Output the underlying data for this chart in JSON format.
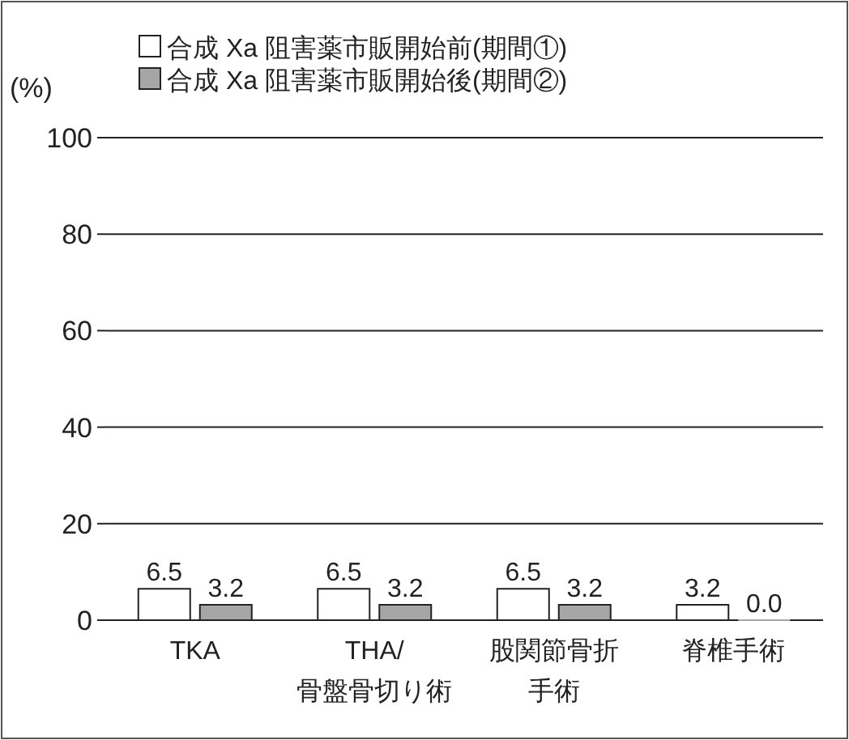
{
  "chart_data": {
    "type": "bar",
    "ylabel": "(%)",
    "categories": [
      "TKA",
      "THA/\n骨盤骨切り術",
      "股関節骨折手術",
      "脊椎手術"
    ],
    "series": [
      {
        "name": "合成 Xa 阻害薬市販開始前(期間①)",
        "color": "#ffffff",
        "values": [
          6.5,
          6.5,
          6.5,
          3.2
        ],
        "value_labels": [
          "6.5",
          "6.5",
          "6.5",
          "3.2"
        ]
      },
      {
        "name": "合成 Xa 阻害薬市販開始後(期間②)",
        "color": "#a6a6a6",
        "values": [
          3.2,
          3.2,
          3.2,
          0.0
        ],
        "value_labels": [
          "3.2",
          "3.2",
          "3.2",
          "0.0"
        ]
      }
    ],
    "ylim": [
      0,
      100
    ],
    "yticks": [
      0,
      20,
      40,
      60,
      80,
      100
    ],
    "grid": "y",
    "legend": "top left"
  }
}
